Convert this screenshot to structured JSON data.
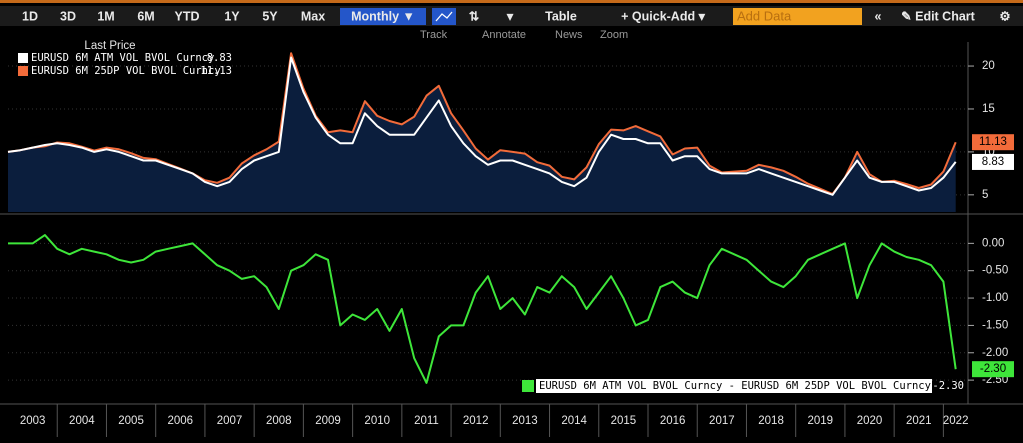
{
  "toolbar": {
    "periods": [
      "1D",
      "3D",
      "1M",
      "6M",
      "YTD",
      "1Y",
      "5Y",
      "Max"
    ],
    "frequency": "Monthly ▼",
    "table": "Table",
    "quick_add": "+ Quick-Add ▾",
    "add_data": "Add Data",
    "collapse": "«",
    "edit_chart": "✎ Edit Chart",
    "settings": "⚙",
    "tools": [
      "Track",
      "Annotate",
      "News",
      "Zoom"
    ]
  },
  "chart_data": [
    {
      "type": "area",
      "legend_title": "Last Price",
      "x": [
        2003,
        2003.25,
        2003.5,
        2003.75,
        2004,
        2004.25,
        2004.5,
        2004.75,
        2005,
        2005.25,
        2005.5,
        2005.75,
        2006,
        2006.25,
        2006.5,
        2006.75,
        2007,
        2007.25,
        2007.5,
        2007.75,
        2008,
        2008.25,
        2008.5,
        2008.75,
        2009,
        2009.25,
        2009.5,
        2009.75,
        2010,
        2010.25,
        2010.5,
        2010.75,
        2011,
        2011.25,
        2011.5,
        2011.75,
        2012,
        2012.25,
        2012.5,
        2012.75,
        2013,
        2013.25,
        2013.5,
        2013.75,
        2014,
        2014.25,
        2014.5,
        2014.75,
        2015,
        2015.25,
        2015.5,
        2015.75,
        2016,
        2016.25,
        2016.5,
        2016.75,
        2017,
        2017.25,
        2017.5,
        2017.75,
        2018,
        2018.25,
        2018.5,
        2018.75,
        2019,
        2019.25,
        2019.5,
        2019.75,
        2020,
        2020.25,
        2020.5,
        2020.75,
        2021,
        2021.25,
        2021.5,
        2021.75,
        2022,
        2022.25
      ],
      "xlim": [
        2003,
        2022.5
      ],
      "ylim": [
        3,
        22.8
      ],
      "yticks": [
        5,
        10,
        15,
        20
      ],
      "area_color": "#0b1e3d",
      "series": [
        {
          "name": "EURUSD 6M ATM VOL BVOL Curncy",
          "color": "#ffffff",
          "values": [
            10,
            10.2,
            10.5,
            10.8,
            11,
            10.8,
            10.5,
            10,
            10.3,
            10,
            9.5,
            9,
            9,
            8.5,
            8,
            7.5,
            6.5,
            6,
            6.5,
            8,
            9,
            9.5,
            10,
            21,
            17,
            14,
            12,
            11,
            11,
            14.5,
            13,
            12,
            12,
            12,
            14,
            16,
            13,
            11,
            9.5,
            8.5,
            9,
            9,
            8.5,
            8,
            7.5,
            6.5,
            6,
            7,
            10,
            12,
            11.5,
            11.5,
            11,
            11,
            9,
            9.5,
            9.5,
            8,
            7.5,
            7.5,
            7.5,
            8,
            7.5,
            7,
            6.5,
            6,
            5.5,
            5,
            7,
            9,
            7,
            6.5,
            6.5,
            6,
            5.5,
            5.8,
            7,
            8.83
          ]
        },
        {
          "name": "EURUSD 6M 25DP VOL BVOL Curncy",
          "color": "#f26b3a",
          "values": [
            10,
            10.2,
            10.5,
            10.65,
            11.1,
            11,
            10.6,
            10.15,
            10.5,
            10.3,
            9.85,
            9.3,
            9.15,
            8.6,
            8.05,
            7.5,
            6.7,
            6.4,
            7,
            8.65,
            9.6,
            10.3,
            11.2,
            21.5,
            17.4,
            14.2,
            12.3,
            12.5,
            12.3,
            15.9,
            14.2,
            13.6,
            13.2,
            14.1,
            16.55,
            17.7,
            14.5,
            12.5,
            10.4,
            9.1,
            10.2,
            10,
            9.8,
            8.8,
            8.4,
            7.1,
            6.8,
            8.2,
            10.9,
            12.6,
            12.5,
            13,
            12.4,
            11.8,
            9.7,
            10.4,
            10.5,
            8.4,
            7.6,
            7.7,
            7.8,
            8.5,
            8.2,
            7.8,
            7.1,
            6.3,
            5.7,
            5.1,
            7,
            10,
            7.4,
            6.5,
            6.65,
            6.25,
            5.8,
            6.2,
            7.7,
            11.13
          ]
        }
      ]
    },
    {
      "type": "line",
      "x": [
        2003,
        2003.25,
        2003.5,
        2003.75,
        2004,
        2004.25,
        2004.5,
        2004.75,
        2005,
        2005.25,
        2005.5,
        2005.75,
        2006,
        2006.25,
        2006.5,
        2006.75,
        2007,
        2007.25,
        2007.5,
        2007.75,
        2008,
        2008.25,
        2008.5,
        2008.75,
        2009,
        2009.25,
        2009.5,
        2009.75,
        2010,
        2010.25,
        2010.5,
        2010.75,
        2011,
        2011.25,
        2011.5,
        2011.75,
        2012,
        2012.25,
        2012.5,
        2012.75,
        2013,
        2013.25,
        2013.5,
        2013.75,
        2014,
        2014.25,
        2014.5,
        2014.75,
        2015,
        2015.25,
        2015.5,
        2015.75,
        2016,
        2016.25,
        2016.5,
        2016.75,
        2017,
        2017.25,
        2017.5,
        2017.75,
        2018,
        2018.25,
        2018.5,
        2018.75,
        2019,
        2019.25,
        2019.5,
        2019.75,
        2020,
        2020.25,
        2020.5,
        2020.75,
        2021,
        2021.25,
        2021.5,
        2021.75,
        2022,
        2022.25
      ],
      "xlim": [
        2003,
        2022.5
      ],
      "xticks": [
        2003,
        2004,
        2005,
        2006,
        2007,
        2008,
        2009,
        2010,
        2011,
        2012,
        2013,
        2014,
        2015,
        2016,
        2017,
        2018,
        2019,
        2020,
        2021,
        2022
      ],
      "ylim": [
        -2.9,
        0.5
      ],
      "yticks": [
        {
          "value": 0,
          "label": "0.00"
        },
        {
          "value": -0.5,
          "label": "-0.50"
        },
        {
          "value": -1,
          "label": "-1.00"
        },
        {
          "value": -1.5,
          "label": "-1.50"
        },
        {
          "value": -2,
          "label": "-2.00"
        },
        {
          "value": -2.5,
          "label": "-2.50"
        }
      ],
      "series": [
        {
          "name": "EURUSD 6M ATM VOL BVOL Curncy - EURUSD 6M 25DP VOL BVOL Curncy",
          "color": "#3ee63a",
          "values": [
            0,
            0,
            0,
            0.15,
            -0.1,
            -0.2,
            -0.1,
            -0.15,
            -0.2,
            -0.3,
            -0.35,
            -0.3,
            -0.15,
            -0.1,
            -0.05,
            0,
            -0.2,
            -0.4,
            -0.5,
            -0.65,
            -0.6,
            -0.8,
            -1.2,
            -0.5,
            -0.4,
            -0.2,
            -0.3,
            -1.5,
            -1.3,
            -1.4,
            -1.2,
            -1.6,
            -1.2,
            -2.1,
            -2.55,
            -1.7,
            -1.5,
            -1.5,
            -0.9,
            -0.6,
            -1.2,
            -1,
            -1.3,
            -0.8,
            -0.9,
            -0.6,
            -0.8,
            -1.2,
            -0.9,
            -0.6,
            -1,
            -1.5,
            -1.4,
            -0.8,
            -0.7,
            -0.9,
            -1,
            -0.4,
            -0.1,
            -0.2,
            -0.3,
            -0.5,
            -0.7,
            -0.8,
            -0.6,
            -0.3,
            -0.2,
            -0.1,
            0,
            -1,
            -0.4,
            0,
            -0.15,
            -0.25,
            -0.3,
            -0.4,
            -0.7,
            -2.3
          ],
          "last_label": "-2.30"
        }
      ]
    }
  ]
}
